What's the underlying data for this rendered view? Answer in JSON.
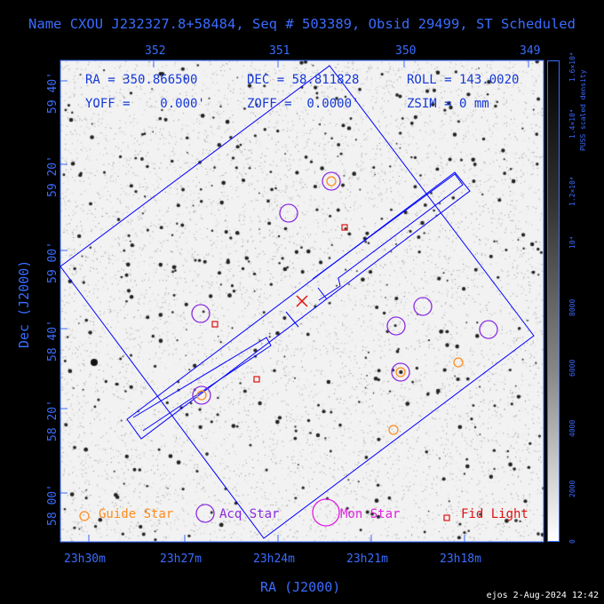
{
  "header": {
    "title": "Name CXOU J232327.8+58484, Seq # 503389, Obsid 29499, ST Scheduled"
  },
  "info": {
    "ra": "RA = 350.866500",
    "dec": "DEC = 58.811828",
    "roll": "ROLL = 143.0020",
    "yoff": "YOFF =    0.000'",
    "zoff": "ZOFF =  0.0000'",
    "zsim": "ZSIM = 0 mm"
  },
  "axes": {
    "xlabel": "RA (J2000)",
    "ylabel": "Dec (J2000)",
    "bottom_ticks": [
      "23h30m",
      "23h27m",
      "23h24m",
      "23h21m",
      "23h18m"
    ],
    "top_ticks": [
      "352",
      "351",
      "350",
      "349"
    ],
    "left_ticks": [
      "59 40'",
      "59 20'",
      "59 00'",
      "58 40'",
      "58 20'",
      "58 00'"
    ]
  },
  "colorbar": {
    "title": "PUSS scaled density",
    "ticks": [
      "0",
      "2000",
      "4000",
      "6000",
      "8000",
      "10⁴",
      "1.2×10⁴",
      "1.4×10⁴",
      "1.6×10⁴"
    ]
  },
  "legend": {
    "guide": "Guide Star",
    "acq": "Acq Star",
    "mon": "Mon Star",
    "fid": "Fid Light"
  },
  "colors": {
    "frame": "#3a6cff",
    "guide": "#ff8c1a",
    "acq": "#8a2be2",
    "mon": "#e020e0",
    "fid": "#e01010",
    "fov": "#0000ff"
  },
  "stamp": "ejos  2-Aug-2024 12:42"
}
